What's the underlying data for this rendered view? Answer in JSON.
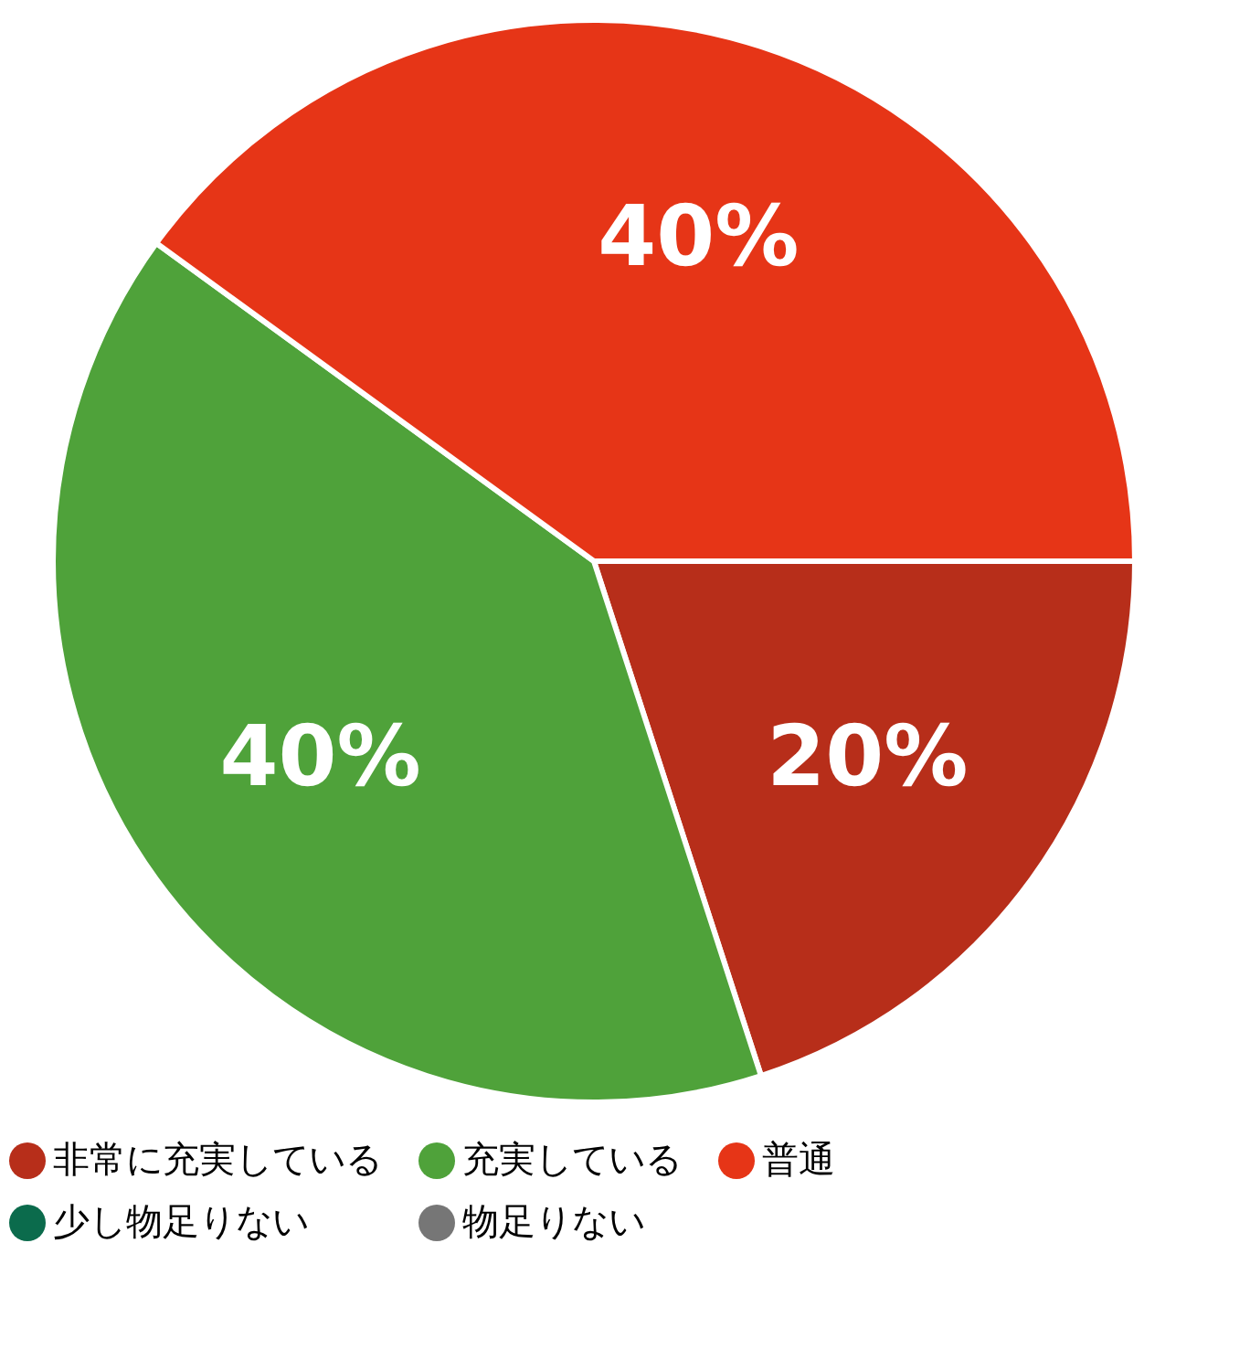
{
  "chart_data": {
    "type": "pie",
    "categories": [
      "非常に充実している",
      "充実している",
      "普通",
      "少し物足りない",
      "物足りない"
    ],
    "values": [
      20,
      40,
      40,
      0,
      0
    ],
    "colors": [
      "#b72e1a",
      "#4fa23a",
      "#e63517",
      "#0b6b4c",
      "#767676"
    ],
    "value_labels": [
      "20%",
      "40%",
      "40%",
      null,
      null
    ],
    "legend": "bottom"
  }
}
